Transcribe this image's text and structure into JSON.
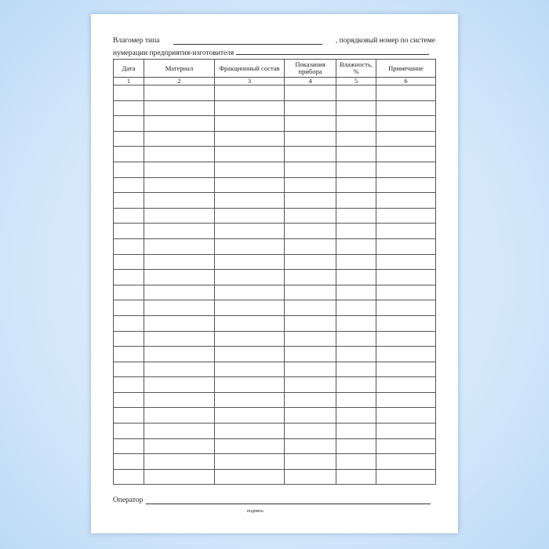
{
  "form": {
    "line1_prefix": "Влагомер типа",
    "line1_suffix": ", порядковый номер по системе",
    "line2_prefix": "нумерации предприятия-изготовителя",
    "columns": [
      "Дата",
      "Материал",
      "Фракционный состав",
      "Показания прибора",
      "Влажность, %",
      "Примечание"
    ],
    "column_numbers": [
      "1",
      "2",
      "3",
      "4",
      "5",
      "6"
    ],
    "empty_rows": 26,
    "operator_label": "Оператор",
    "signature_caption": "подпись"
  }
}
